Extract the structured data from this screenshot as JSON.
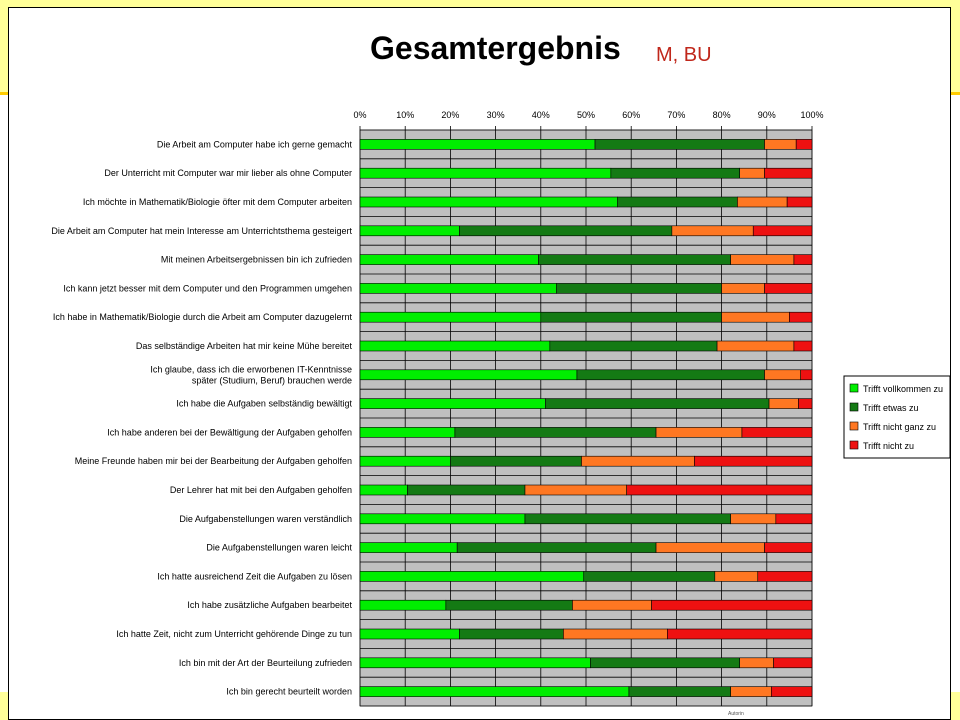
{
  "title": "Gesamtergebnis",
  "subtitle": "M, BU",
  "footer_mark": "Autorin",
  "chart_data": {
    "type": "bar",
    "orientation": "horizontal",
    "stacked": "percent",
    "xlim": [
      0,
      100
    ],
    "x_ticks": [
      "0%",
      "10%",
      "20%",
      "30%",
      "40%",
      "50%",
      "60%",
      "70%",
      "80%",
      "90%",
      "100%"
    ],
    "grid": true,
    "legend_position": "right",
    "categories": [
      "Die Arbeit am Computer habe ich gerne gemacht",
      "Der Unterricht mit Computer war mir lieber als ohne Computer",
      "Ich möchte in Mathematik/Biologie öfter mit dem Computer arbeiten",
      "Die Arbeit am Computer hat mein Interesse am Unterrichtsthema gesteigert",
      "Mit meinen Arbeitsergebnissen bin ich zufrieden",
      "Ich kann jetzt besser mit dem Computer und den Programmen umgehen",
      "Ich habe in Mathematik/Biologie durch die Arbeit am Computer dazugelernt",
      "Das selbständige Arbeiten hat mir keine Mühe bereitet",
      [
        "Ich glaube, dass ich die erworbenen IT-Kenntnisse",
        "später (Studium, Beruf) brauchen werde"
      ],
      "Ich habe die Aufgaben selbständig bewältigt",
      "Ich habe anderen bei der Bewältigung der Aufgaben geholfen",
      "Meine Freunde haben mir bei der Bearbeitung der Aufgaben geholfen",
      "Der Lehrer hat mit bei den Aufgaben geholfen",
      "Die Aufgabenstellungen waren verständlich",
      "Die Aufgabenstellungen waren leicht",
      "Ich hatte ausreichend Zeit die Aufgaben zu lösen",
      "Ich habe zusätzliche Aufgaben bearbeitet",
      "Ich hatte Zeit, nicht zum Unterricht gehörende Dinge zu tun",
      "Ich bin mit der Art der Beurteilung zufrieden",
      "Ich bin gerecht beurteilt worden"
    ],
    "series": [
      {
        "name": "Trifft vollkommen zu",
        "color": "#00ee00",
        "values": [
          52,
          55.5,
          57,
          22,
          39.5,
          43.5,
          40,
          42,
          48,
          41,
          21,
          20,
          10.5,
          36.5,
          21.5,
          49.5,
          19,
          22,
          51,
          59.5
        ]
      },
      {
        "name": "Trifft etwas zu",
        "color": "#147a14",
        "values": [
          37.5,
          28.5,
          26.5,
          47,
          42.5,
          36.5,
          40,
          37,
          41.5,
          49.5,
          44.5,
          29,
          26,
          45.5,
          44,
          29,
          28,
          23,
          33,
          22.5
        ]
      },
      {
        "name": "Trifft nicht ganz zu",
        "color": "#ff7722",
        "values": [
          7,
          5.5,
          11,
          18,
          14,
          9.5,
          15,
          17,
          8,
          6.5,
          19,
          25,
          22.5,
          10,
          24,
          9.5,
          17.5,
          23,
          7.5,
          9
        ]
      },
      {
        "name": "Trifft nicht zu",
        "color": "#ee1111",
        "values": [
          3.5,
          10.5,
          5.5,
          13,
          4,
          10.5,
          5,
          4,
          2.5,
          3,
          15.5,
          26,
          41,
          8,
          10.5,
          12,
          35.5,
          32,
          8.5,
          9
        ]
      }
    ]
  }
}
